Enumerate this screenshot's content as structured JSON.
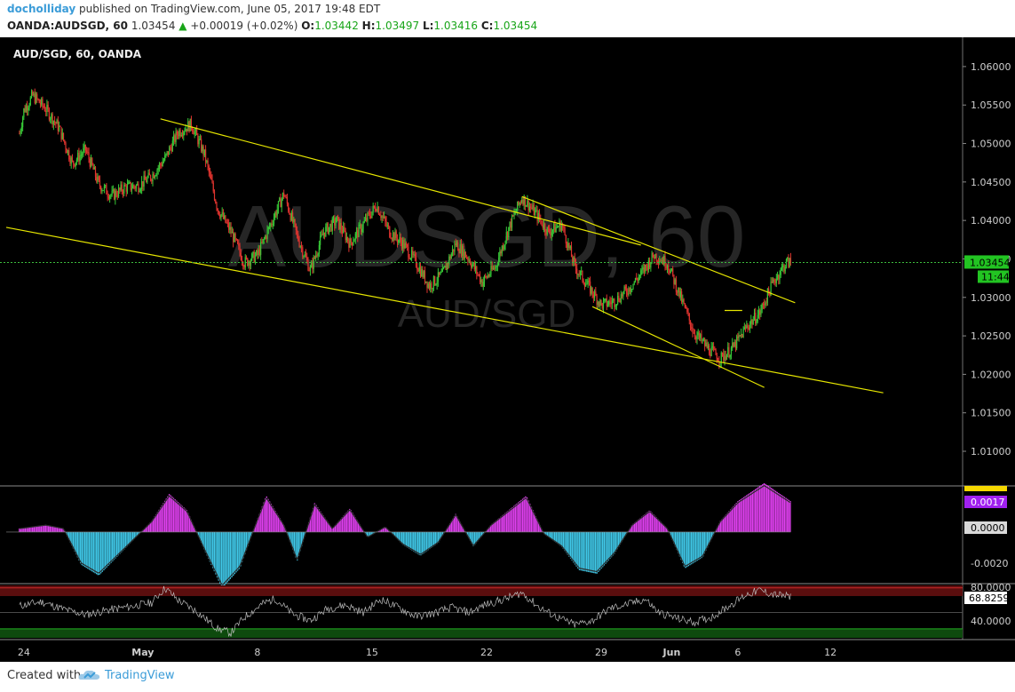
{
  "header": {
    "author": "docholliday",
    "published_text": " published on TradingView.com, June 05, 2017 19:48 EDT",
    "symbol_interval": "OANDA:AUDSGD, 60",
    "last": "1.03454",
    "change_arrow": "▲",
    "change": "+0.00019 (+0.02%)",
    "o_label": "O:",
    "o_value": "1.03442",
    "h_label": "H:",
    "h_value": "1.03497",
    "l_label": "L:",
    "l_value": "1.03416",
    "c_label": "C:",
    "c_value": "1.03454"
  },
  "chart_data": {
    "type": "candlestick",
    "title": "AUD/SGD, 60, OANDA",
    "watermark_main": "AUDSGD, 60",
    "watermark_sub": "AUD/SGD",
    "ylim": [
      1.0055,
      1.0638
    ],
    "y_ticks": [
      "1.06000",
      "1.05500",
      "1.05000",
      "1.04500",
      "1.04000",
      "1.03500",
      "1.03000",
      "1.02500",
      "1.02000",
      "1.01500",
      "1.01000"
    ],
    "x_ticks": [
      "24",
      "May",
      "8",
      "15",
      "22",
      "29",
      "Jun",
      "6",
      "12"
    ],
    "last_price_label": "1.03454",
    "bar_countdown": "11:44",
    "price_path": [
      [
        0,
        1.0513
      ],
      [
        1,
        1.0543
      ],
      [
        3,
        1.0562
      ],
      [
        6,
        1.0545
      ],
      [
        9,
        1.052
      ],
      [
        12,
        1.0474
      ],
      [
        15,
        1.0492
      ],
      [
        18,
        1.0447
      ],
      [
        21,
        1.0432
      ],
      [
        24,
        1.0443
      ],
      [
        27,
        1.0445
      ],
      [
        30,
        1.0458
      ],
      [
        33,
        1.048
      ],
      [
        36,
        1.0515
      ],
      [
        39,
        1.0525
      ],
      [
        42,
        1.0485
      ],
      [
        45,
        1.0415
      ],
      [
        48,
        1.0385
      ],
      [
        51,
        1.0345
      ],
      [
        54,
        1.0355
      ],
      [
        57,
        1.0395
      ],
      [
        60,
        1.0435
      ],
      [
        63,
        1.038
      ],
      [
        66,
        1.0335
      ],
      [
        69,
        1.0385
      ],
      [
        72,
        1.04
      ],
      [
        75,
        1.037
      ],
      [
        78,
        1.0395
      ],
      [
        81,
        1.042
      ],
      [
        84,
        1.0385
      ],
      [
        87,
        1.037
      ],
      [
        90,
        1.0345
      ],
      [
        93,
        1.0315
      ],
      [
        96,
        1.033
      ],
      [
        99,
        1.037
      ],
      [
        102,
        1.035
      ],
      [
        105,
        1.032
      ],
      [
        108,
        1.034
      ],
      [
        111,
        1.039
      ],
      [
        114,
        1.043
      ],
      [
        117,
        1.041
      ],
      [
        120,
        1.0385
      ],
      [
        123,
        1.0395
      ],
      [
        126,
        1.034
      ],
      [
        129,
        1.0315
      ],
      [
        132,
        1.029
      ],
      [
        135,
        1.0295
      ],
      [
        138,
        1.031
      ],
      [
        141,
        1.033
      ],
      [
        144,
        1.0355
      ],
      [
        147,
        1.0345
      ],
      [
        150,
        1.03
      ],
      [
        153,
        1.0255
      ],
      [
        156,
        1.0235
      ],
      [
        159,
        1.022
      ],
      [
        162,
        1.0235
      ],
      [
        165,
        1.0262
      ],
      [
        168,
        1.028
      ],
      [
        171,
        1.032
      ],
      [
        174,
        1.0345
      ],
      [
        175,
        1.03454
      ]
    ],
    "trendlines": [
      {
        "x1": 32,
        "y1": 1.0532,
        "x2": 141,
        "y2": 1.0368
      },
      {
        "x1": -3,
        "y1": 1.0391,
        "x2": 196,
        "y2": 1.0176
      },
      {
        "x1": 114,
        "y1": 1.0431,
        "x2": 176,
        "y2": 1.0293
      },
      {
        "x1": 130,
        "y1": 1.0288,
        "x2": 169,
        "y2": 1.0183
      },
      {
        "x1": 160,
        "y1": 1.0283,
        "x2": 164,
        "y2": 1.0283
      }
    ],
    "x_range": [
      -3,
      214
    ],
    "x_tick_positions": [
      1,
      28,
      54,
      80,
      106,
      132,
      148,
      163,
      184
    ],
    "macd": {
      "label_value": "0.0017",
      "zero_label": "0.0000",
      "ticks": [
        "-0.0020"
      ],
      "ylim": [
        -0.0027,
        0.0023
      ],
      "histogram": [
        [
          0,
          0.0002
        ],
        [
          6,
          0.0004
        ],
        [
          10,
          0.0002
        ],
        [
          14,
          -0.0018
        ],
        [
          18,
          -0.0024
        ],
        [
          22,
          -0.0014
        ],
        [
          26,
          -0.0004
        ],
        [
          30,
          0.0006
        ],
        [
          34,
          0.0021
        ],
        [
          38,
          0.0012
        ],
        [
          42,
          -0.001
        ],
        [
          46,
          -0.0031
        ],
        [
          50,
          -0.002
        ],
        [
          54,
          0.0007
        ],
        [
          56,
          0.002
        ],
        [
          60,
          0.0004
        ],
        [
          63,
          -0.0016
        ],
        [
          67,
          0.0016
        ],
        [
          71,
          0.0002
        ],
        [
          75,
          0.0013
        ],
        [
          79,
          -0.0003
        ],
        [
          83,
          0.0003
        ],
        [
          87,
          -0.0007
        ],
        [
          91,
          -0.0013
        ],
        [
          95,
          -0.0006
        ],
        [
          99,
          0.001
        ],
        [
          103,
          -0.0008
        ],
        [
          107,
          0.0004
        ],
        [
          111,
          0.0012
        ],
        [
          115,
          0.002
        ],
        [
          119,
          -0.0001
        ],
        [
          123,
          -0.0008
        ],
        [
          127,
          -0.0021
        ],
        [
          131,
          -0.0023
        ],
        [
          135,
          -0.0012
        ],
        [
          139,
          0.0004
        ],
        [
          143,
          0.0012
        ],
        [
          147,
          0.0002
        ],
        [
          151,
          -0.002
        ],
        [
          155,
          -0.0014
        ],
        [
          159,
          0.0006
        ],
        [
          163,
          0.0017
        ],
        [
          169,
          0.0027
        ],
        [
          175,
          0.0017
        ]
      ]
    },
    "rsi": {
      "label_value": "68.8259",
      "ticks": [
        "80.0000",
        "40.0000"
      ],
      "ylim": [
        19,
        83
      ],
      "bands": {
        "upper": 70,
        "lower": 30
      },
      "values": [
        [
          0,
          58
        ],
        [
          5,
          63
        ],
        [
          10,
          54
        ],
        [
          15,
          47
        ],
        [
          20,
          53
        ],
        [
          25,
          57
        ],
        [
          30,
          62
        ],
        [
          33,
          80
        ],
        [
          36,
          65
        ],
        [
          40,
          52
        ],
        [
          45,
          30
        ],
        [
          48,
          25
        ],
        [
          51,
          44
        ],
        [
          55,
          60
        ],
        [
          58,
          67
        ],
        [
          62,
          48
        ],
        [
          66,
          40
        ],
        [
          70,
          55
        ],
        [
          74,
          59
        ],
        [
          78,
          50
        ],
        [
          82,
          66
        ],
        [
          86,
          56
        ],
        [
          90,
          45
        ],
        [
          94,
          49
        ],
        [
          98,
          56
        ],
        [
          102,
          50
        ],
        [
          106,
          60
        ],
        [
          110,
          66
        ],
        [
          114,
          74
        ],
        [
          118,
          56
        ],
        [
          122,
          44
        ],
        [
          126,
          35
        ],
        [
          130,
          40
        ],
        [
          134,
          55
        ],
        [
          138,
          60
        ],
        [
          142,
          66
        ],
        [
          145,
          50
        ],
        [
          149,
          43
        ],
        [
          153,
          38
        ],
        [
          157,
          44
        ],
        [
          161,
          58
        ],
        [
          165,
          72
        ],
        [
          168,
          77
        ],
        [
          171,
          72
        ],
        [
          175,
          69
        ]
      ]
    }
  },
  "footer": {
    "created_with": "Created with",
    "tradingview": "TradingView"
  }
}
